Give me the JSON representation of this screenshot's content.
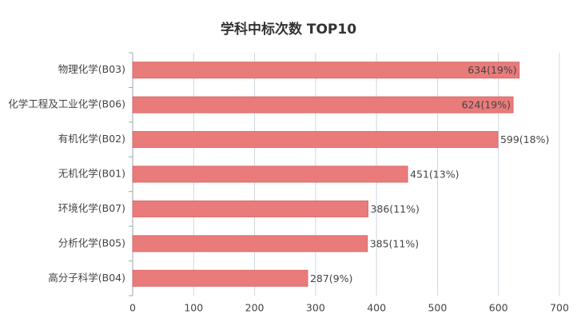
{
  "chart_data": {
    "type": "barh",
    "title": "学科中标次数 TOP10",
    "categories": [
      "物理化学(B03)",
      "化学工程及工业化学(B06)",
      "有机化学(B02)",
      "无机化学(B01)",
      "环境化学(B07)",
      "分析化学(B05)",
      "高分子科学(B04)"
    ],
    "values": [
      634,
      624,
      599,
      451,
      386,
      385,
      287
    ],
    "value_labels": [
      "634(19%)",
      "624(19%)",
      "599(18%)",
      "451(13%)",
      "386(11%)",
      "385(11%)",
      "287(9%)"
    ],
    "color": "#ea7b7b",
    "xlim": [
      0,
      700
    ],
    "xticks": [
      0,
      100,
      200,
      300,
      400,
      500,
      600,
      700
    ],
    "grid": true
  }
}
